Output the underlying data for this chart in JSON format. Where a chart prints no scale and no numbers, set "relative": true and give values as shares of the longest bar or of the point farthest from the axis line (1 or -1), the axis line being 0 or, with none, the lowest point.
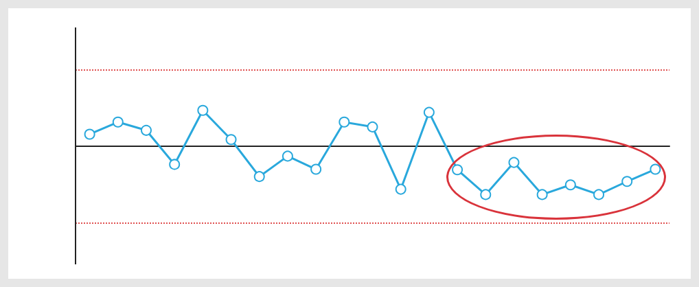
{
  "chart_data": {
    "type": "line",
    "relative": true,
    "marker": "circle",
    "line_style": "solid",
    "categories": [
      null,
      null,
      null,
      null,
      null,
      null,
      null,
      null,
      null,
      null,
      null,
      null,
      null,
      null,
      null,
      null,
      null,
      null,
      null,
      null,
      null
    ],
    "series": [
      {
        "color": "#29a8dc",
        "values": [
          0.24,
          0.49,
          0.32,
          -0.38,
          0.73,
          0.13,
          -0.63,
          -0.21,
          -0.48,
          0.49,
          0.39,
          -0.89,
          0.69,
          -0.49,
          -1,
          -0.34,
          -1,
          -0.8,
          -1,
          -0.73,
          -0.48
        ]
      }
    ],
    "ref_lines": [
      {
        "axis": "y",
        "value": 1.56,
        "color": "#e05050",
        "line_style": "dotted"
      },
      {
        "axis": "y",
        "value": -1.59,
        "color": "#e05050",
        "line_style": "dotted"
      }
    ]
  }
}
